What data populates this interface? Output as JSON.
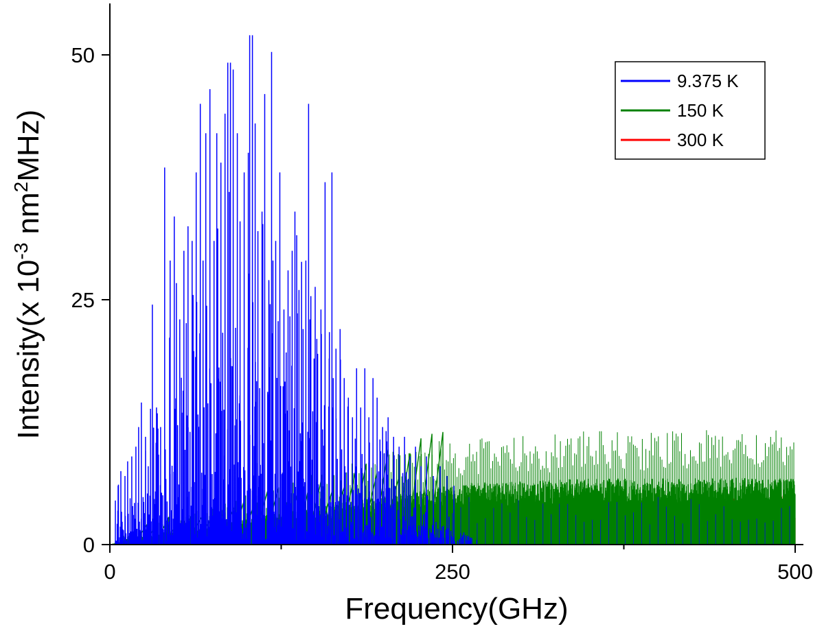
{
  "chart_data": {
    "type": "line",
    "xlabel": "Frequency(GHz)",
    "ylabel": {
      "prefix": "Intensity(x 10",
      "exp1": "-3",
      "mid": " nm",
      "exp2": "2",
      "suffix": "MHz)"
    },
    "xlim": [
      0,
      500
    ],
    "ylim": [
      0,
      50
    ],
    "x_ticks": [
      0,
      250,
      500
    ],
    "x_minor_ticks": [
      125,
      375
    ],
    "y_ticks": [
      0,
      25,
      50
    ],
    "grid": false,
    "legend_position": "top-right",
    "series": [
      {
        "name": "9.375 K",
        "color": "#0000ff",
        "peaks": [
          [
            4,
            4.5
          ],
          [
            6,
            6
          ],
          [
            8,
            7.5
          ],
          [
            11,
            7
          ],
          [
            13,
            8.5
          ],
          [
            16,
            9
          ],
          [
            19,
            10
          ],
          [
            21,
            12
          ],
          [
            23,
            14.5
          ],
          [
            26,
            11
          ],
          [
            28,
            8
          ],
          [
            31,
            24.5
          ],
          [
            34,
            14
          ],
          [
            37,
            12
          ],
          [
            40,
            38.5
          ],
          [
            44,
            29
          ],
          [
            47,
            33.5
          ],
          [
            51,
            23
          ],
          [
            54,
            30
          ],
          [
            57,
            32.5
          ],
          [
            60,
            31
          ],
          [
            63,
            38
          ],
          [
            66,
            45
          ],
          [
            68,
            29
          ],
          [
            70,
            42
          ],
          [
            73,
            46.5
          ],
          [
            76,
            31
          ],
          [
            78,
            42
          ],
          [
            81,
            39
          ],
          [
            84,
            44
          ],
          [
            87,
            36
          ],
          [
            90,
            48.5
          ],
          [
            93,
            42
          ],
          [
            95,
            33
          ],
          [
            98,
            38
          ],
          [
            101,
            40
          ],
          [
            104,
            30
          ],
          [
            106,
            43
          ],
          [
            108,
            32
          ],
          [
            111,
            34
          ],
          [
            113,
            46
          ],
          [
            116,
            27
          ],
          [
            119,
            29
          ],
          [
            121,
            31
          ],
          [
            124,
            32
          ],
          [
            127,
            24
          ],
          [
            130,
            28
          ],
          [
            133,
            30
          ],
          [
            135,
            34
          ],
          [
            138,
            26
          ],
          [
            141,
            22
          ],
          [
            143,
            29
          ],
          [
            146,
            23
          ],
          [
            149,
            19
          ],
          [
            151,
            21
          ],
          [
            154,
            24
          ],
          [
            157,
            37
          ],
          [
            160,
            19
          ],
          [
            163,
            17
          ],
          [
            165,
            20
          ],
          [
            168,
            22
          ],
          [
            171,
            17
          ],
          [
            174,
            15
          ],
          [
            177,
            13
          ],
          [
            180,
            18
          ],
          [
            183,
            14
          ],
          [
            186,
            18
          ],
          [
            189,
            13
          ],
          [
            192,
            17
          ],
          [
            195,
            15
          ],
          [
            199,
            12
          ],
          [
            203,
            13
          ],
          [
            207,
            11
          ],
          [
            211,
            10
          ],
          [
            215,
            11
          ],
          [
            219,
            9
          ],
          [
            223,
            10
          ],
          [
            227,
            8
          ],
          [
            231,
            9
          ],
          [
            236,
            7
          ],
          [
            241,
            8
          ],
          [
            246,
            7
          ],
          [
            251,
            6
          ]
        ],
        "tall_peaks": [
          [
            102,
            52
          ],
          [
            104,
            52
          ],
          [
            118,
            50.3
          ],
          [
            86,
            49.2
          ],
          [
            88,
            49.2
          ],
          [
            145,
            45
          ],
          [
            124,
            38
          ],
          [
            162,
            38
          ]
        ]
      },
      {
        "name": "150 K",
        "color": "#008000",
        "envelope": [
          [
            0,
            0
          ],
          [
            15,
            0.8
          ],
          [
            40,
            1.5
          ],
          [
            60,
            2
          ],
          [
            80,
            2.5
          ],
          [
            100,
            3
          ],
          [
            120,
            3.5
          ],
          [
            140,
            4
          ],
          [
            160,
            4.5
          ],
          [
            180,
            5
          ],
          [
            200,
            5.5
          ],
          [
            220,
            6
          ],
          [
            240,
            6.5
          ],
          [
            260,
            7
          ],
          [
            300,
            7.2
          ],
          [
            350,
            7.5
          ],
          [
            400,
            7.5
          ],
          [
            450,
            7.6
          ],
          [
            500,
            7.5
          ]
        ],
        "max": 13
      },
      {
        "name": "300 K",
        "color": "#ff0000",
        "envelope": [
          [
            0,
            0
          ],
          [
            20,
            0.3
          ],
          [
            60,
            0.6
          ],
          [
            100,
            0.9
          ],
          [
            150,
            1.3
          ],
          [
            200,
            1.8
          ],
          [
            250,
            2.3
          ],
          [
            300,
            2.8
          ],
          [
            350,
            3.2
          ],
          [
            400,
            3.6
          ],
          [
            450,
            4
          ],
          [
            500,
            4.5
          ]
        ],
        "max": 5
      }
    ]
  }
}
